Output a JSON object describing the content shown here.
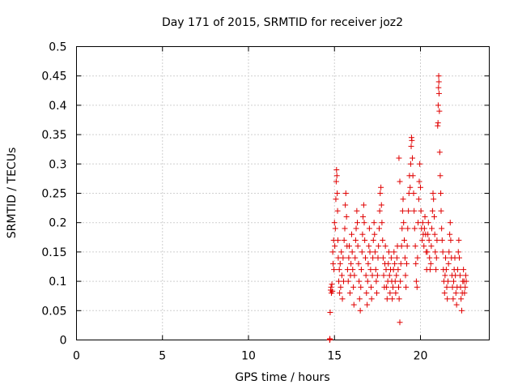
{
  "chart_data": {
    "type": "scatter",
    "title": "Day 171 of 2015, SRMTID for receiver joz2",
    "xlabel": "GPS time / hours",
    "ylabel": "SRMTID / TECUs",
    "xlim": [
      0,
      24
    ],
    "ylim": [
      0,
      0.5
    ],
    "xticks": [
      0,
      5,
      10,
      15,
      20
    ],
    "yticks": [
      0,
      0.05,
      0.1,
      0.15,
      0.2,
      0.25,
      0.3,
      0.35,
      0.4,
      0.45,
      0.5
    ],
    "xtick_labels": [
      "0",
      "5",
      "10",
      "15",
      "20"
    ],
    "ytick_labels": [
      "0",
      "0.05",
      "0.1",
      "0.15",
      "0.2",
      "0.25",
      "0.3",
      "0.35",
      "0.4",
      "0.45",
      "0.5"
    ],
    "grid": true,
    "marker": "plus",
    "color": "#e00000",
    "series": [
      {
        "points": [
          [
            14.72,
            0.0
          ],
          [
            14.73,
            0.002
          ],
          [
            14.74,
            0.001
          ],
          [
            14.75,
            0.047
          ],
          [
            14.78,
            0.085
          ],
          [
            14.8,
            0.09
          ],
          [
            14.82,
            0.08
          ],
          [
            14.85,
            0.095
          ],
          [
            14.88,
            0.083
          ],
          [
            14.9,
            0.15
          ],
          [
            14.92,
            0.13
          ],
          [
            14.95,
            0.17
          ],
          [
            14.97,
            0.12
          ],
          [
            15.0,
            0.2
          ],
          [
            15.02,
            0.16
          ],
          [
            15.05,
            0.19
          ],
          [
            15.08,
            0.24
          ],
          [
            15.1,
            0.27
          ],
          [
            15.12,
            0.29
          ],
          [
            15.14,
            0.28
          ],
          [
            15.16,
            0.25
          ],
          [
            15.18,
            0.22
          ],
          [
            15.2,
            0.17
          ],
          [
            15.22,
            0.14
          ],
          [
            15.25,
            0.1
          ],
          [
            15.28,
            0.12
          ],
          [
            15.3,
            0.08
          ],
          [
            15.33,
            0.13
          ],
          [
            15.36,
            0.09
          ],
          [
            15.4,
            0.15
          ],
          [
            15.43,
            0.11
          ],
          [
            15.46,
            0.07
          ],
          [
            15.5,
            0.14
          ],
          [
            15.53,
            0.1
          ],
          [
            15.56,
            0.17
          ],
          [
            15.6,
            0.19
          ],
          [
            15.63,
            0.23
          ],
          [
            15.66,
            0.25
          ],
          [
            15.7,
            0.21
          ],
          [
            15.73,
            0.16
          ],
          [
            15.76,
            0.12
          ],
          [
            15.8,
            0.1
          ],
          [
            15.83,
            0.14
          ],
          [
            15.86,
            0.16
          ],
          [
            15.9,
            0.08
          ],
          [
            15.93,
            0.11
          ],
          [
            15.96,
            0.13
          ],
          [
            16.0,
            0.18
          ],
          [
            16.03,
            0.15
          ],
          [
            16.06,
            0.12
          ],
          [
            16.1,
            0.09
          ],
          [
            16.13,
            0.06
          ],
          [
            16.16,
            0.11
          ],
          [
            16.2,
            0.14
          ],
          [
            16.23,
            0.17
          ],
          [
            16.26,
            0.19
          ],
          [
            16.3,
            0.22
          ],
          [
            16.33,
            0.2
          ],
          [
            16.36,
            0.16
          ],
          [
            16.4,
            0.13
          ],
          [
            16.43,
            0.1
          ],
          [
            16.46,
            0.07
          ],
          [
            16.5,
            0.05
          ],
          [
            16.53,
            0.09
          ],
          [
            16.56,
            0.12
          ],
          [
            16.6,
            0.15
          ],
          [
            16.63,
            0.18
          ],
          [
            16.66,
            0.21
          ],
          [
            16.7,
            0.23
          ],
          [
            16.73,
            0.2
          ],
          [
            16.76,
            0.17
          ],
          [
            16.8,
            0.14
          ],
          [
            16.83,
            0.11
          ],
          [
            16.86,
            0.08
          ],
          [
            16.9,
            0.06
          ],
          [
            16.93,
            0.1
          ],
          [
            16.96,
            0.13
          ],
          [
            17.0,
            0.16
          ],
          [
            17.03,
            0.19
          ],
          [
            17.06,
            0.15
          ],
          [
            17.1,
            0.12
          ],
          [
            17.13,
            0.09
          ],
          [
            17.16,
            0.07
          ],
          [
            17.2,
            0.11
          ],
          [
            17.23,
            0.14
          ],
          [
            17.26,
            0.17
          ],
          [
            17.3,
            0.2
          ],
          [
            17.33,
            0.18
          ],
          [
            17.36,
            0.15
          ],
          [
            17.4,
            0.12
          ],
          [
            17.43,
            0.1
          ],
          [
            17.46,
            0.08
          ],
          [
            17.5,
            0.11
          ],
          [
            17.53,
            0.14
          ],
          [
            17.56,
            0.16
          ],
          [
            17.6,
            0.19
          ],
          [
            17.63,
            0.22
          ],
          [
            17.66,
            0.25
          ],
          [
            17.7,
            0.26
          ],
          [
            17.73,
            0.23
          ],
          [
            17.76,
            0.2
          ],
          [
            17.8,
            0.17
          ],
          [
            17.83,
            0.14
          ],
          [
            17.86,
            0.11
          ],
          [
            17.9,
            0.09
          ],
          [
            17.93,
            0.13
          ],
          [
            17.96,
            0.16
          ],
          [
            18.0,
            0.12
          ],
          [
            18.03,
            0.09
          ],
          [
            18.06,
            0.07
          ],
          [
            18.1,
            0.1
          ],
          [
            18.13,
            0.13
          ],
          [
            18.16,
            0.15
          ],
          [
            18.2,
            0.11
          ],
          [
            18.23,
            0.08
          ],
          [
            18.26,
            0.12
          ],
          [
            18.3,
            0.14
          ],
          [
            18.33,
            0.1
          ],
          [
            18.36,
            0.07
          ],
          [
            18.4,
            0.09
          ],
          [
            18.43,
            0.12
          ],
          [
            18.46,
            0.15
          ],
          [
            18.5,
            0.13
          ],
          [
            18.53,
            0.1
          ],
          [
            18.56,
            0.08
          ],
          [
            18.6,
            0.11
          ],
          [
            18.63,
            0.14
          ],
          [
            18.66,
            0.16
          ],
          [
            18.7,
            0.12
          ],
          [
            18.73,
            0.09
          ],
          [
            18.76,
            0.07
          ],
          [
            18.8,
            0.03
          ],
          [
            18.83,
            0.1
          ],
          [
            18.86,
            0.13
          ],
          [
            18.9,
            0.16
          ],
          [
            18.93,
            0.19
          ],
          [
            18.96,
            0.22
          ],
          [
            18.99,
            0.24
          ],
          [
            18.75,
            0.31
          ],
          [
            18.8,
            0.27
          ],
          [
            19.02,
            0.2
          ],
          [
            19.06,
            0.17
          ],
          [
            19.1,
            0.14
          ],
          [
            19.13,
            0.11
          ],
          [
            19.16,
            0.09
          ],
          [
            19.2,
            0.13
          ],
          [
            19.23,
            0.16
          ],
          [
            19.26,
            0.19
          ],
          [
            19.3,
            0.22
          ],
          [
            19.33,
            0.25
          ],
          [
            19.36,
            0.28
          ],
          [
            19.4,
            0.26
          ],
          [
            19.43,
            0.3
          ],
          [
            19.46,
            0.33
          ],
          [
            19.48,
            0.345
          ],
          [
            19.5,
            0.34
          ],
          [
            19.53,
            0.31
          ],
          [
            19.56,
            0.28
          ],
          [
            19.6,
            0.25
          ],
          [
            19.63,
            0.22
          ],
          [
            19.66,
            0.19
          ],
          [
            19.7,
            0.16
          ],
          [
            19.73,
            0.13
          ],
          [
            19.76,
            0.1
          ],
          [
            19.8,
            0.09
          ],
          [
            19.83,
            0.14
          ],
          [
            19.86,
            0.2
          ],
          [
            19.9,
            0.24
          ],
          [
            19.93,
            0.27
          ],
          [
            19.96,
            0.3
          ],
          [
            20.0,
            0.26
          ],
          [
            20.03,
            0.22
          ],
          [
            20.06,
            0.19
          ],
          [
            20.1,
            0.17
          ],
          [
            20.13,
            0.2
          ],
          [
            20.16,
            0.18
          ],
          [
            20.2,
            0.16
          ],
          [
            20.23,
            0.19
          ],
          [
            20.26,
            0.21
          ],
          [
            20.3,
            0.18
          ],
          [
            20.33,
            0.15
          ],
          [
            20.36,
            0.12
          ],
          [
            20.4,
            0.15
          ],
          [
            20.43,
            0.18
          ],
          [
            20.46,
            0.2
          ],
          [
            20.5,
            0.17
          ],
          [
            20.53,
            0.14
          ],
          [
            20.56,
            0.12
          ],
          [
            20.6,
            0.13
          ],
          [
            20.63,
            0.16
          ],
          [
            20.66,
            0.19
          ],
          [
            20.7,
            0.22
          ],
          [
            20.73,
            0.25
          ],
          [
            20.76,
            0.24
          ],
          [
            20.8,
            0.21
          ],
          [
            20.83,
            0.18
          ],
          [
            20.86,
            0.15
          ],
          [
            20.9,
            0.12
          ],
          [
            20.93,
            0.14
          ],
          [
            20.96,
            0.17
          ],
          [
            21.0,
            0.365
          ],
          [
            21.02,
            0.37
          ],
          [
            21.03,
            0.4
          ],
          [
            21.05,
            0.43
          ],
          [
            21.06,
            0.45
          ],
          [
            21.07,
            0.44
          ],
          [
            21.08,
            0.42
          ],
          [
            21.1,
            0.39
          ],
          [
            21.12,
            0.32
          ],
          [
            21.15,
            0.28
          ],
          [
            21.18,
            0.25
          ],
          [
            21.2,
            0.22
          ],
          [
            21.23,
            0.19
          ],
          [
            21.26,
            0.17
          ],
          [
            21.3,
            0.15
          ],
          [
            21.33,
            0.12
          ],
          [
            21.36,
            0.1
          ],
          [
            21.4,
            0.08
          ],
          [
            21.43,
            0.11
          ],
          [
            21.46,
            0.14
          ],
          [
            21.5,
            0.12
          ],
          [
            21.53,
            0.09
          ],
          [
            21.56,
            0.07
          ],
          [
            21.6,
            0.1
          ],
          [
            21.63,
            0.13
          ],
          [
            21.66,
            0.15
          ],
          [
            21.7,
            0.18
          ],
          [
            21.73,
            0.2
          ],
          [
            21.76,
            0.17
          ],
          [
            21.8,
            0.14
          ],
          [
            21.83,
            0.11
          ],
          [
            21.86,
            0.09
          ],
          [
            21.9,
            0.07
          ],
          [
            21.93,
            0.1
          ],
          [
            21.96,
            0.12
          ],
          [
            22.0,
            0.14
          ],
          [
            22.03,
            0.11
          ],
          [
            22.06,
            0.08
          ],
          [
            22.1,
            0.06
          ],
          [
            22.13,
            0.09
          ],
          [
            22.16,
            0.12
          ],
          [
            22.2,
            0.15
          ],
          [
            22.23,
            0.17
          ],
          [
            22.26,
            0.14
          ],
          [
            22.3,
            0.11
          ],
          [
            22.33,
            0.09
          ],
          [
            22.36,
            0.07
          ],
          [
            22.4,
            0.05
          ],
          [
            22.43,
            0.08
          ],
          [
            22.46,
            0.1
          ],
          [
            22.5,
            0.12
          ],
          [
            22.53,
            0.1
          ],
          [
            22.56,
            0.08
          ],
          [
            22.6,
            0.09
          ],
          [
            22.63,
            0.11
          ],
          [
            22.66,
            0.1
          ]
        ]
      }
    ]
  }
}
